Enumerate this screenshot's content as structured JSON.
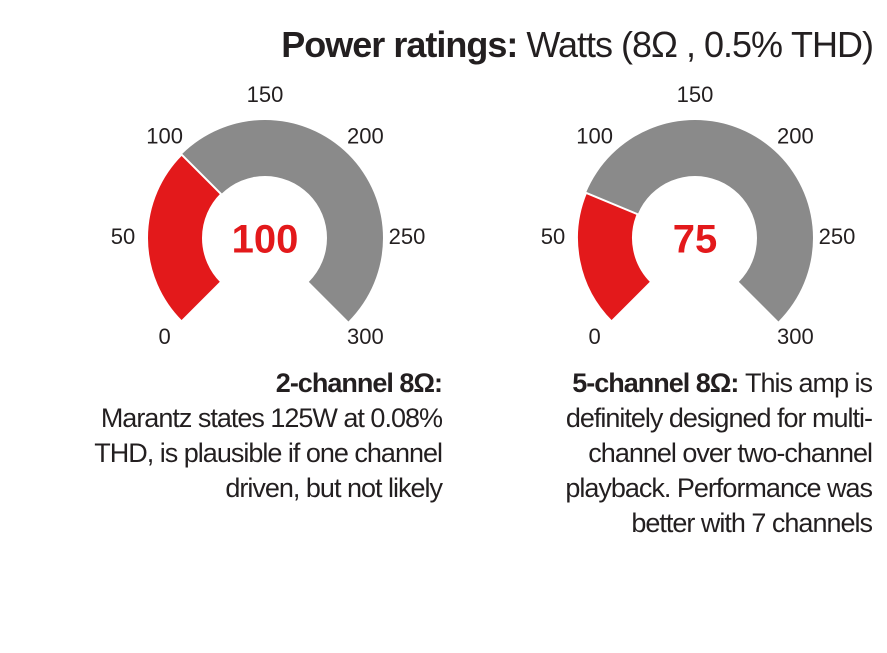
{
  "title": "Power ratings:",
  "subtitle": "Watts (8Ω , 0.5% THD)",
  "chart_data": [
    {
      "type": "gauge",
      "value": 100,
      "lim": [
        0,
        300
      ],
      "ticks": [
        0,
        50,
        100,
        150,
        200,
        250,
        300
      ],
      "color": "#e3191b",
      "track_color": "#8a8a8a",
      "caption_title": "2-channel 8Ω:",
      "caption": "Marantz states 125W at 0.08% THD, is plausible if one channel driven, but not likely"
    },
    {
      "type": "gauge",
      "value": 75,
      "lim": [
        0,
        300
      ],
      "ticks": [
        0,
        50,
        100,
        150,
        200,
        250,
        300
      ],
      "color": "#e3191b",
      "track_color": "#8a8a8a",
      "caption_title": "5-channel 8Ω:",
      "caption": "This amp is definitely designed for multi-channel over two-channel playback. Performance was better with 7 channels"
    }
  ]
}
